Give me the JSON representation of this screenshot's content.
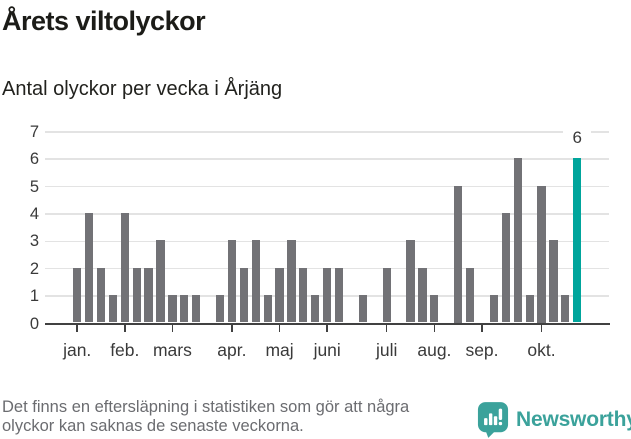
{
  "header": {
    "title": "Årets viltolyckor",
    "subtitle": "Antal olyckor per vecka i Årjäng"
  },
  "chart_data": {
    "type": "bar",
    "title": "Årets viltolyckor",
    "subtitle": "Antal olyckor per vecka i Årjäng",
    "xlabel": "",
    "ylabel": "",
    "x_unit": "vecka",
    "ylim": [
      0,
      7
    ],
    "yticks": [
      0,
      1,
      2,
      3,
      4,
      5,
      6,
      7
    ],
    "grid": true,
    "values": [
      2,
      4,
      2,
      1,
      4,
      2,
      2,
      3,
      1,
      1,
      1,
      0,
      1,
      3,
      2,
      3,
      1,
      2,
      3,
      2,
      1,
      2,
      2,
      0,
      1,
      0,
      2,
      0,
      3,
      2,
      1,
      0,
      5,
      2,
      0,
      1,
      4,
      6,
      1,
      5,
      3,
      1,
      6
    ],
    "month_ticks": [
      {
        "label": "jan.",
        "index": 0
      },
      {
        "label": "feb.",
        "index": 4
      },
      {
        "label": "mars",
        "index": 8
      },
      {
        "label": "apr.",
        "index": 13
      },
      {
        "label": "maj",
        "index": 17
      },
      {
        "label": "juni",
        "index": 21
      },
      {
        "label": "juli",
        "index": 26
      },
      {
        "label": "aug.",
        "index": 30
      },
      {
        "label": "sep.",
        "index": 34
      },
      {
        "label": "okt.",
        "index": 39
      }
    ],
    "highlight_last": true,
    "last_value_label": "6",
    "bar_color": "#727276",
    "highlight_color": "#00a59c",
    "grid_color": "#e3e3e3",
    "axis_color": "#414141",
    "legend": "none"
  },
  "footer": {
    "lines": [
      "Det finns en eftersläpning i statistiken som gör att några",
      "olyckor kan saknas de senaste veckorna."
    ],
    "brand_name": "Newsworthy",
    "brand_color": "#3ba29b"
  }
}
